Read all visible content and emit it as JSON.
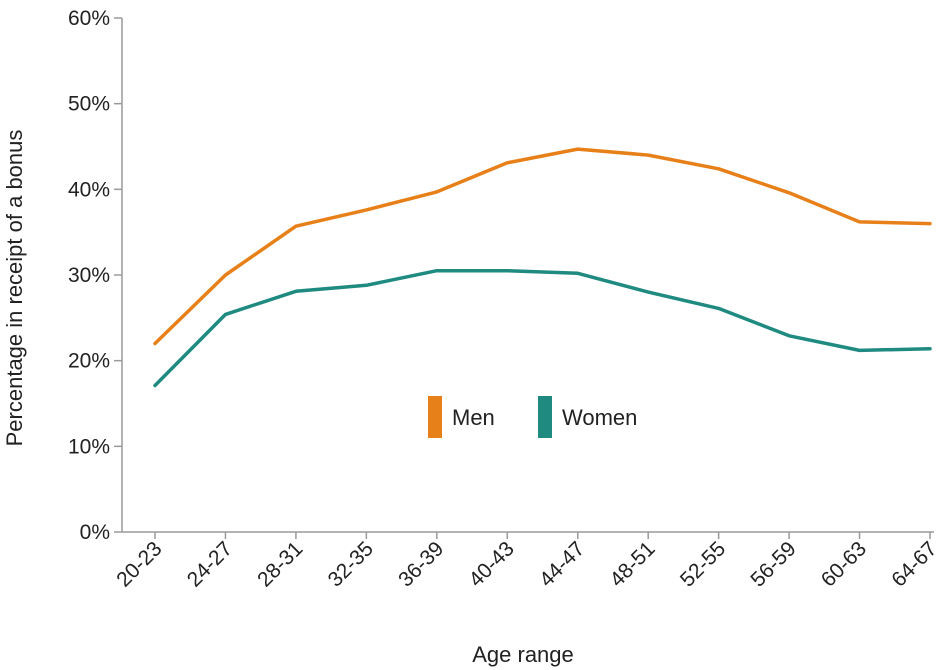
{
  "chart_data": {
    "type": "line",
    "categories": [
      "20-23",
      "24-27",
      "28-31",
      "32-35",
      "36-39",
      "40-43",
      "44-47",
      "48-51",
      "52-55",
      "56-59",
      "60-63",
      "64-67"
    ],
    "series": [
      {
        "name": "Men",
        "color": "#e8801a",
        "values": [
          22.0,
          30.0,
          35.7,
          37.6,
          39.7,
          43.1,
          44.7,
          44.0,
          42.4,
          39.6,
          36.2,
          36.0
        ]
      },
      {
        "name": "Women",
        "color": "#1f8a80",
        "values": [
          17.1,
          25.4,
          28.1,
          28.8,
          30.5,
          30.5,
          30.2,
          28.0,
          26.1,
          22.9,
          21.2,
          21.4
        ]
      }
    ],
    "xlabel": "Age range",
    "ylabel": "Percentage in receipt of a bonus",
    "ylim": [
      0,
      60
    ],
    "yticks": [
      "0%",
      "10%",
      "20%",
      "30%",
      "40%",
      "50%",
      "60%"
    ],
    "ytick_values": [
      0,
      10,
      20,
      30,
      40,
      50,
      60
    ],
    "grid": false,
    "legend_position": "center"
  }
}
